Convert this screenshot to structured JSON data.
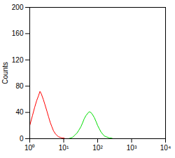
{
  "chart_data": {
    "type": "line",
    "log": "x",
    "grid": false,
    "y_label": "Counts",
    "x": [
      1,
      1.2,
      1.4,
      1.6,
      1.8,
      2,
      2.2,
      2.5,
      2.8,
      3.2,
      3.6,
      4,
      4.5,
      5,
      5.6,
      6.3,
      7,
      8,
      9,
      10,
      11,
      12.6,
      14,
      16,
      18,
      20,
      22,
      25,
      28,
      32,
      36,
      40,
      45,
      50,
      56,
      63,
      70,
      80,
      90,
      100,
      112,
      126,
      141,
      158,
      178,
      200,
      224,
      251,
      282,
      316
    ],
    "series": [
      {
        "color": "#ff0000",
        "values": [
          20,
          35,
          48,
          58,
          65,
          72,
          68,
          60,
          52,
          42,
          33,
          25,
          18,
          12,
          8,
          5,
          3,
          2,
          1,
          1,
          0,
          0,
          null,
          null,
          null,
          null,
          null,
          null,
          null,
          null,
          null,
          null,
          null,
          null,
          null,
          null,
          null,
          null,
          null,
          null,
          null,
          null,
          null,
          null,
          null,
          null,
          null,
          null,
          null,
          null
        ]
      },
      {
        "color": "#00dd00",
        "values": [
          null,
          null,
          null,
          null,
          null,
          null,
          null,
          null,
          null,
          null,
          null,
          null,
          null,
          null,
          null,
          null,
          null,
          null,
          null,
          null,
          null,
          null,
          0,
          1,
          2,
          4,
          6,
          9,
          13,
          18,
          24,
          30,
          35,
          38,
          41,
          40,
          37,
          32,
          26,
          20,
          15,
          10,
          7,
          4,
          3,
          2,
          1,
          1,
          0,
          0
        ]
      }
    ],
    "xlim": [
      1,
      10000
    ],
    "xticks": [
      {
        "value": 1,
        "label": "10⁰"
      },
      {
        "value": 10,
        "label": "10¹"
      },
      {
        "value": 100,
        "label": "10²"
      },
      {
        "value": 1000,
        "label": "10³"
      },
      {
        "value": 10000,
        "label": "10⁴"
      }
    ],
    "ylim": [
      0,
      200
    ],
    "yticks": [
      0,
      40,
      80,
      120,
      160,
      200
    ]
  }
}
